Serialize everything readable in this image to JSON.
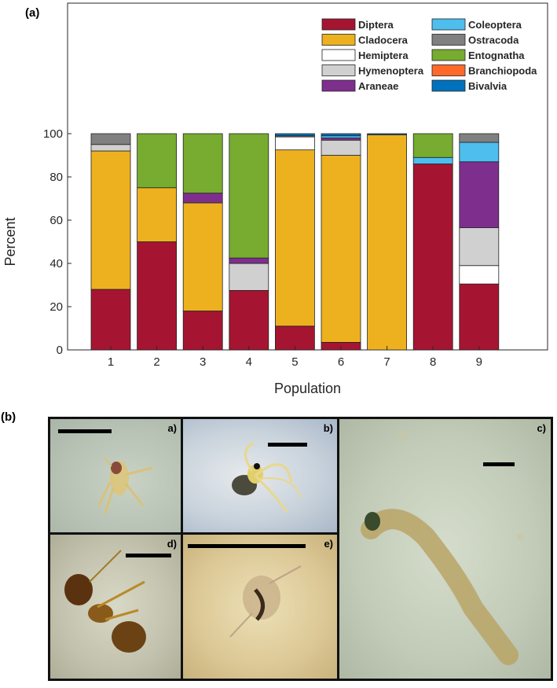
{
  "figure": {
    "panel_a_label": "(a)",
    "panel_b_label": "(b)"
  },
  "chart_data": {
    "type": "bar",
    "stacked": true,
    "title": "",
    "xlabel": "Population",
    "ylabel": "Percent",
    "categories": [
      "1",
      "2",
      "3",
      "4",
      "5",
      "6",
      "7",
      "8",
      "9"
    ],
    "ylim": [
      0,
      100
    ],
    "yticks": [
      0,
      20,
      40,
      60,
      80,
      100
    ],
    "grid": false,
    "legend_position": "top-right",
    "series": [
      {
        "name": "Diptera",
        "color": "#A51531",
        "values": [
          28,
          50,
          18,
          27.5,
          11,
          3.5,
          0,
          86,
          30.5
        ]
      },
      {
        "name": "Cladocera",
        "color": "#EDB120",
        "values": [
          64,
          25,
          50,
          0,
          81.5,
          86.5,
          99.5,
          0,
          0
        ]
      },
      {
        "name": "Hemiptera",
        "color": "#FFFFFF",
        "values": [
          0,
          0,
          0,
          0,
          6,
          0,
          0,
          0,
          8.5
        ]
      },
      {
        "name": "Hymenoptera",
        "color": "#D0D0D0",
        "values": [
          3,
          0,
          0,
          12.5,
          0,
          7,
          0,
          0,
          17.5
        ]
      },
      {
        "name": "Araneae",
        "color": "#7E2F8E",
        "values": [
          0,
          0,
          4.5,
          2.5,
          0,
          1,
          0,
          0,
          30.5
        ]
      },
      {
        "name": "Coleoptera",
        "color": "#4DBEEE",
        "values": [
          0,
          0,
          0,
          0,
          0,
          1,
          0,
          3,
          9
        ]
      },
      {
        "name": "Ostracoda",
        "color": "#808080",
        "values": [
          5,
          0,
          0,
          0,
          0.5,
          0,
          0,
          0,
          4
        ]
      },
      {
        "name": "Entognatha",
        "color": "#77AC30",
        "values": [
          0,
          25,
          27.5,
          57.5,
          0,
          0,
          0,
          11,
          0
        ]
      },
      {
        "name": "Branchiopoda",
        "color": "#FF6A2B",
        "values": [
          0,
          0,
          0,
          0,
          0,
          0,
          0,
          0,
          0
        ]
      },
      {
        "name": "Bivalvia",
        "color": "#0072BD",
        "values": [
          0,
          0,
          0,
          0,
          1,
          1,
          0.5,
          0,
          0
        ]
      }
    ]
  },
  "photos": [
    {
      "id": "a",
      "label": "a)"
    },
    {
      "id": "b",
      "label": "b)"
    },
    {
      "id": "c",
      "label": "c)"
    },
    {
      "id": "d",
      "label": "d)"
    },
    {
      "id": "e",
      "label": "e)"
    }
  ]
}
